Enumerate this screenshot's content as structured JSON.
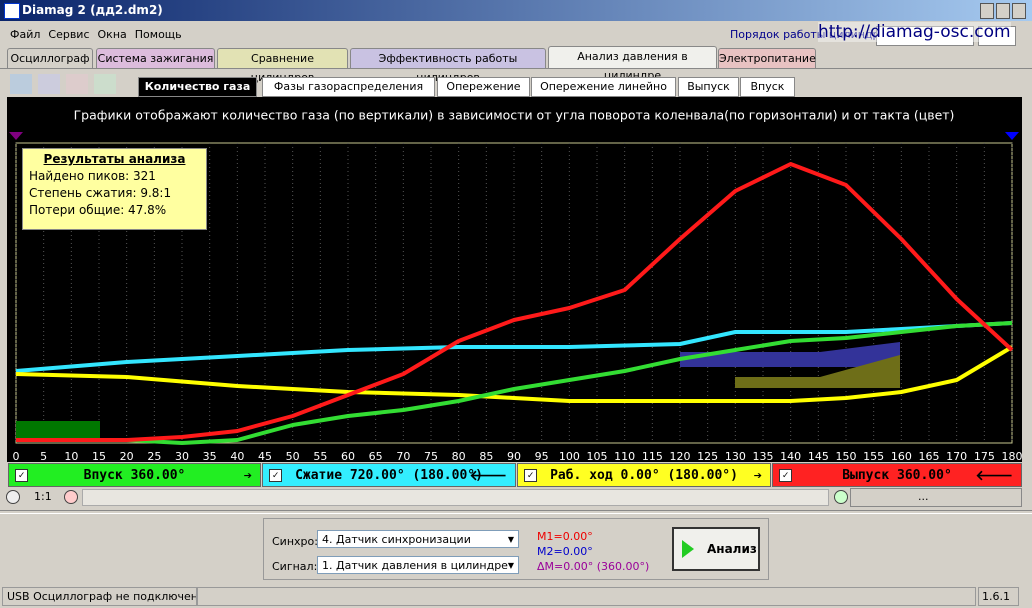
{
  "window": {
    "title": "Diamag 2 (дд2.dm2)",
    "version": "1.6.1"
  },
  "menu": [
    "Файл",
    "Сервис",
    "Окна",
    "Помощь"
  ],
  "order_label": "Порядок работы цилиндров",
  "url": "http://diamag-osc.com",
  "tabs": [
    "Осциллограф",
    "Система зажигания",
    "Сравнение цилиндров",
    "Эффективность работы цилиндров",
    "Анализ давления в цилиндре",
    "Электропитание"
  ],
  "subtabs": [
    "Количество газа",
    "Фазы газораспределения",
    "Опережение",
    "Опережение линейно",
    "Выпуск",
    "Впуск"
  ],
  "results": {
    "title": "Результаты анализа",
    "lines": [
      "Найдено пиков: 321",
      "Степень сжатия: 9.8:1",
      "Потери общие: 47.8%"
    ]
  },
  "cylinders": [
    "Впуск 360.00°",
    "Сжатие 720.00° (180.00°)",
    "Раб. ход 0.00° (180.00°)",
    "Выпуск 360.00°"
  ],
  "zoom": "1:1",
  "scroll_label": "...",
  "panel": {
    "sync_label": "Синхро:",
    "sync_value": "4. Датчик синхронизации",
    "signal_label": "Сигнал:",
    "signal_value": "1. Датчик давления в цилиндре",
    "m1": "M1=0.00°",
    "m2": "M2=0.00°",
    "dm": "ΔM=0.00° (360.00°)",
    "button": "Анализ"
  },
  "status": "USB Осциллограф не подключен",
  "chart_data": {
    "type": "line",
    "title": "Графики отображают количество газа (по вертикали) в зависимости от угла поворота коленвала(по горизонтали) и от такта (цвет)",
    "x": [
      0,
      10,
      20,
      30,
      40,
      50,
      60,
      70,
      80,
      90,
      100,
      110,
      120,
      130,
      140,
      150,
      160,
      170,
      180
    ],
    "xlim": [
      0,
      180
    ],
    "xticks": [
      0,
      5,
      10,
      15,
      20,
      25,
      30,
      35,
      40,
      45,
      50,
      55,
      60,
      65,
      70,
      75,
      80,
      85,
      90,
      95,
      100,
      105,
      110,
      115,
      120,
      125,
      130,
      135,
      140,
      145,
      150,
      155,
      160,
      165,
      170,
      175,
      180
    ],
    "ylim": [
      0,
      100
    ],
    "series": [
      {
        "color": "#33e6ff",
        "values": [
          24,
          25.5,
          27,
          28,
          29,
          30,
          31,
          31.5,
          32,
          32,
          32,
          32.5,
          33,
          37,
          37,
          37,
          38,
          39,
          40
        ]
      },
      {
        "color": "#ffff00",
        "values": [
          23,
          22.5,
          22,
          20.5,
          19,
          18,
          17,
          16.5,
          16,
          15,
          14,
          14,
          14,
          14,
          14,
          15,
          17,
          21,
          32
        ]
      },
      {
        "color": "#33dd33",
        "values": [
          1,
          1,
          1,
          0,
          1,
          6,
          9,
          11,
          14,
          18,
          21,
          24,
          28,
          31,
          34,
          35,
          37,
          39,
          40
        ]
      },
      {
        "color": "#ff1a1a",
        "values": [
          1,
          1,
          1,
          2,
          4,
          9,
          16,
          23,
          34,
          41,
          45,
          51,
          68,
          84,
          93,
          86,
          68,
          48,
          31
        ]
      }
    ]
  }
}
